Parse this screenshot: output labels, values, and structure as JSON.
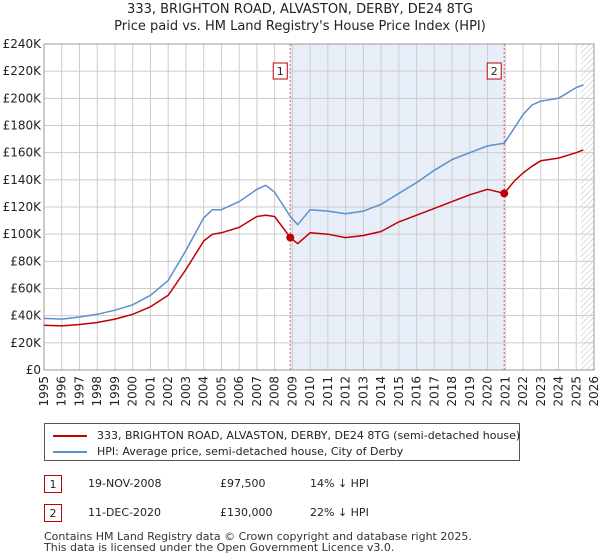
{
  "title": {
    "line1": "333, BRIGHTON ROAD, ALVASTON, DERBY, DE24 8TG",
    "line2": "Price paid vs. HM Land Registry's House Price Index (HPI)"
  },
  "legend": {
    "property_label": "333, BRIGHTON ROAD, ALVASTON, DERBY, DE24 8TG (semi-detached house)",
    "hpi_label": "HPI: Average price, semi-detached house, City of Derby"
  },
  "transactions": [
    {
      "marker": "1",
      "date": "19-NOV-2008",
      "price": "£97,500",
      "hpi_diff": "14% ↓ HPI"
    },
    {
      "marker": "2",
      "date": "11-DEC-2020",
      "price": "£130,000",
      "hpi_diff": "22% ↓ HPI"
    }
  ],
  "footer": {
    "line1": "Contains HM Land Registry data © Crown copyright and database right 2025.",
    "line2": "This data is licensed under the Open Government Licence v3.0."
  },
  "colors": {
    "property": "#c00000",
    "hpi": "#5b8fcf",
    "marker_line": "#e06060",
    "highlight": "#e8eef8",
    "grid": "#cccccc"
  },
  "chart_data": {
    "type": "line",
    "title": "Price paid vs. HM Land Registry's House Price Index (HPI)",
    "xlim": [
      1995,
      2026
    ],
    "ylim": [
      0,
      240000
    ],
    "x_ticks": [
      "1995",
      "1996",
      "1997",
      "1998",
      "1999",
      "2000",
      "2001",
      "2002",
      "2003",
      "2004",
      "2005",
      "2006",
      "2007",
      "2008",
      "2009",
      "2010",
      "2011",
      "2012",
      "2013",
      "2014",
      "2015",
      "2016",
      "2017",
      "2018",
      "2019",
      "2020",
      "2021",
      "2022",
      "2023",
      "2024",
      "2025",
      "2026"
    ],
    "y_ticks": [
      {
        "value": 0,
        "label": "£0"
      },
      {
        "value": 20000,
        "label": "£20K"
      },
      {
        "value": 40000,
        "label": "£40K"
      },
      {
        "value": 60000,
        "label": "£60K"
      },
      {
        "value": 80000,
        "label": "£80K"
      },
      {
        "value": 100000,
        "label": "£100K"
      },
      {
        "value": 120000,
        "label": "£120K"
      },
      {
        "value": 140000,
        "label": "£140K"
      },
      {
        "value": 160000,
        "label": "£160K"
      },
      {
        "value": 180000,
        "label": "£180K"
      },
      {
        "value": 200000,
        "label": "£200K"
      },
      {
        "value": 220000,
        "label": "£220K"
      },
      {
        "value": 240000,
        "label": "£240K"
      }
    ],
    "series": [
      {
        "name": "333, BRIGHTON ROAD, ALVASTON, DERBY, DE24 8TG (semi-detached house)",
        "x": [
          1995,
          1996,
          1997,
          1998,
          1999,
          2000,
          2001,
          2002,
          2003,
          2004,
          2004.5,
          2005,
          2006,
          2007,
          2007.5,
          2008,
          2008.88,
          2009.3,
          2010,
          2011,
          2012,
          2013,
          2014,
          2015,
          2016,
          2017,
          2018,
          2019,
          2020,
          2020.94,
          2021.5,
          2022,
          2022.5,
          2023,
          2024,
          2025,
          2025.4
        ],
        "values": [
          33000,
          32500,
          33500,
          35000,
          37500,
          41000,
          46500,
          55000,
          74000,
          95000,
          100000,
          101000,
          105000,
          113000,
          114000,
          113000,
          97500,
          93000,
          101000,
          100000,
          97500,
          99000,
          102000,
          109000,
          114000,
          119000,
          124000,
          129000,
          133000,
          130000,
          139000,
          145000,
          150000,
          154000,
          156000,
          160000,
          162000
        ]
      },
      {
        "name": "HPI: Average price, semi-detached house, City of Derby",
        "x": [
          1995,
          1996,
          1997,
          1998,
          1999,
          2000,
          2001,
          2002,
          2003,
          2004,
          2004.5,
          2005,
          2006,
          2007,
          2007.5,
          2008,
          2008.88,
          2009.3,
          2010,
          2011,
          2012,
          2013,
          2014,
          2015,
          2016,
          2017,
          2018,
          2019,
          2020,
          2020.94,
          2021.5,
          2022,
          2022.5,
          2023,
          2024,
          2025,
          2025.4
        ],
        "values": [
          38000,
          37500,
          39000,
          41000,
          44000,
          48000,
          55000,
          66000,
          88000,
          112000,
          118000,
          118000,
          124000,
          133000,
          136000,
          131000,
          113000,
          107000,
          118000,
          117000,
          115000,
          117000,
          122000,
          130000,
          138000,
          147000,
          155000,
          160000,
          165000,
          167000,
          178000,
          188000,
          195000,
          198000,
          200000,
          208000,
          210000
        ]
      }
    ],
    "annotations": [
      {
        "marker": "1",
        "x": 2008.88,
        "y": 97500
      },
      {
        "marker": "2",
        "x": 2020.94,
        "y": 130000
      }
    ],
    "projection_start": 2025.25,
    "grid": true
  }
}
